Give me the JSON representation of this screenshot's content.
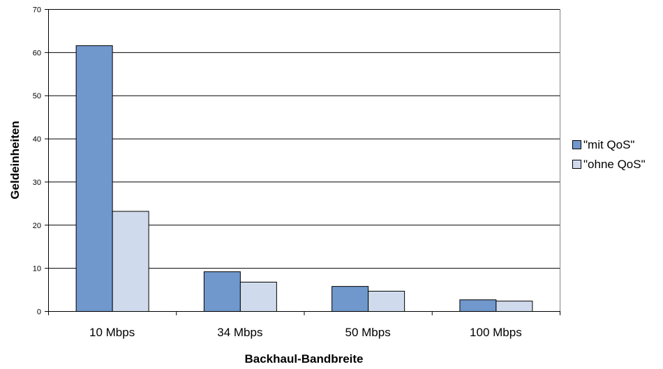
{
  "chart_data": {
    "type": "bar",
    "title": "",
    "xlabel": "Backhaul-Bandbreite",
    "ylabel": "Geldeinheiten",
    "categories": [
      "10 Mbps",
      "34 Mbps",
      "50 Mbps",
      "100 Mbps"
    ],
    "series": [
      {
        "name": "\"mit QoS\"",
        "values": [
          61.6,
          9.2,
          5.8,
          2.7
        ],
        "color": "#7098cc"
      },
      {
        "name": "\"ohne QoS\"",
        "values": [
          23.2,
          6.8,
          4.7,
          2.4
        ],
        "color": "#cfdbed"
      }
    ],
    "ylim": [
      0,
      70
    ],
    "yticks": [
      0,
      10,
      20,
      30,
      40,
      50,
      60,
      70
    ],
    "grid": true,
    "legend_position": "right"
  }
}
